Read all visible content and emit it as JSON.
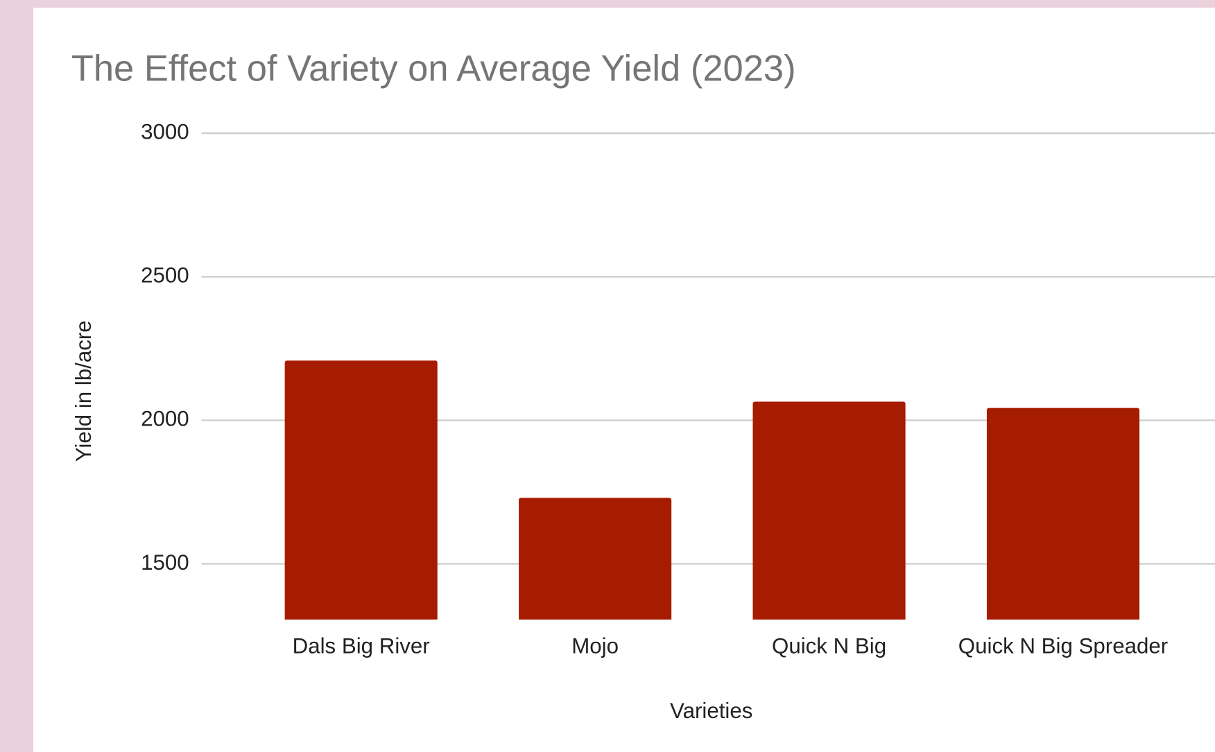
{
  "chart_data": {
    "type": "bar",
    "title": "The Effect of Variety on Average Yield (2023)",
    "x_label": "Varieties",
    "y_label": "Yield in lb/acre",
    "categories": [
      "Dals Big River",
      "Mojo",
      "Quick N Big",
      "Quick N Big Spreader"
    ],
    "values": [
      2208,
      1730,
      2065,
      2043
    ],
    "color": "#a61c00",
    "ylim": [
      1306,
      3000
    ],
    "yticks": [
      1500,
      2000,
      2500,
      3000
    ],
    "grid": true
  }
}
